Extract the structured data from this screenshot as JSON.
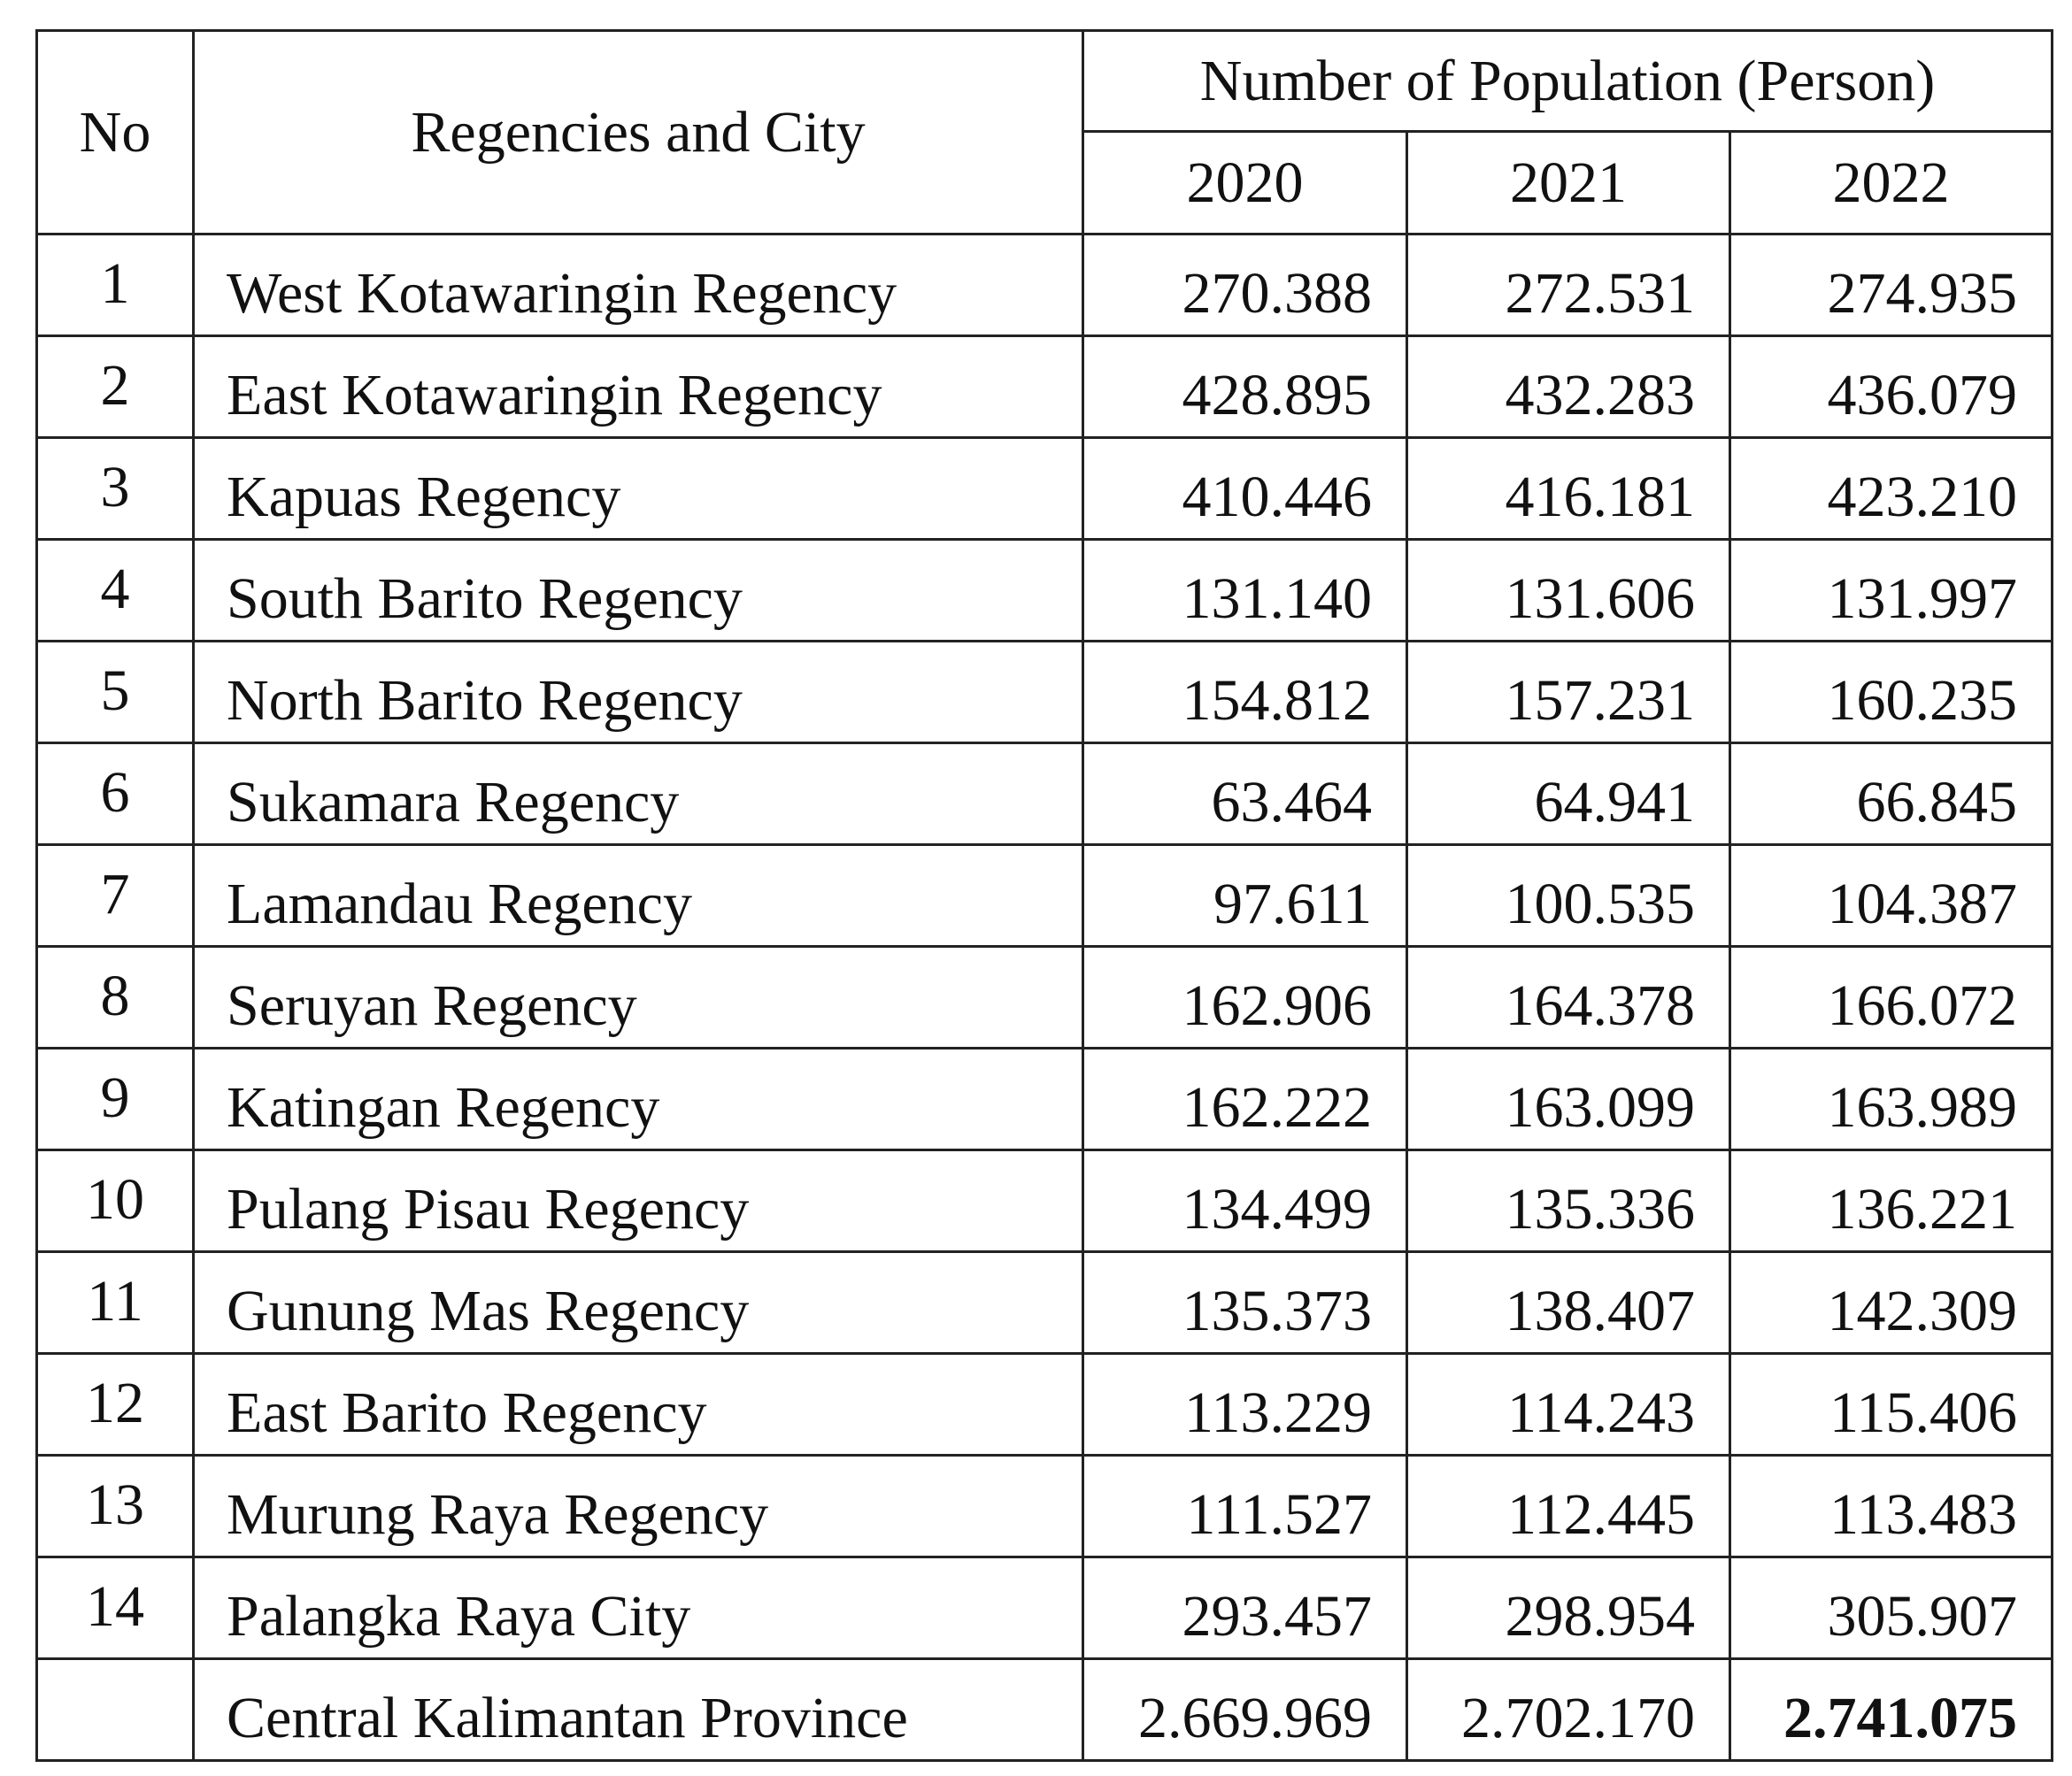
{
  "table": {
    "headers": {
      "no": "No",
      "name": "Regencies and City",
      "group": "Number of Population (Person)",
      "years": [
        "2020",
        "2021",
        "2022"
      ]
    },
    "rows": [
      [
        "1",
        "West Kotawaringin Regency",
        "270.388",
        "272.531",
        "274.935"
      ],
      [
        "2",
        "East Kotawaringin Regency",
        "428.895",
        "432.283",
        "436.079"
      ],
      [
        "3",
        "Kapuas Regency",
        "410.446",
        "416.181",
        "423.210"
      ],
      [
        "4",
        "South Barito Regency",
        "131.140",
        "131.606",
        "131.997"
      ],
      [
        "5",
        "North Barito Regency",
        "154.812",
        "157.231",
        "160.235"
      ],
      [
        "6",
        "Sukamara Regency",
        "63.464",
        "64.941",
        "66.845"
      ],
      [
        "7",
        "Lamandau Regency",
        "97.611",
        "100.535",
        "104.387"
      ],
      [
        "8",
        "Seruyan Regency",
        "162.906",
        "164.378",
        "166.072"
      ],
      [
        "9",
        "Katingan Regency",
        "162.222",
        "163.099",
        "163.989"
      ],
      [
        "10",
        "Pulang Pisau Regency",
        "134.499",
        "135.336",
        "136.221"
      ],
      [
        "11",
        "Gunung Mas Regency",
        "135.373",
        "138.407",
        "142.309"
      ],
      [
        "12",
        "East Barito Regency",
        "113.229",
        "114.243",
        "115.406"
      ],
      [
        "13",
        "Murung Raya Regency",
        "111.527",
        "112.445",
        "113.483"
      ],
      [
        "14",
        "Palangka Raya City",
        "293.457",
        "298.954",
        "305.907"
      ]
    ],
    "total": {
      "label": "Central Kalimantan Province",
      "values": [
        "2.669.969",
        "2.702.170",
        "2.741.075"
      ]
    }
  }
}
